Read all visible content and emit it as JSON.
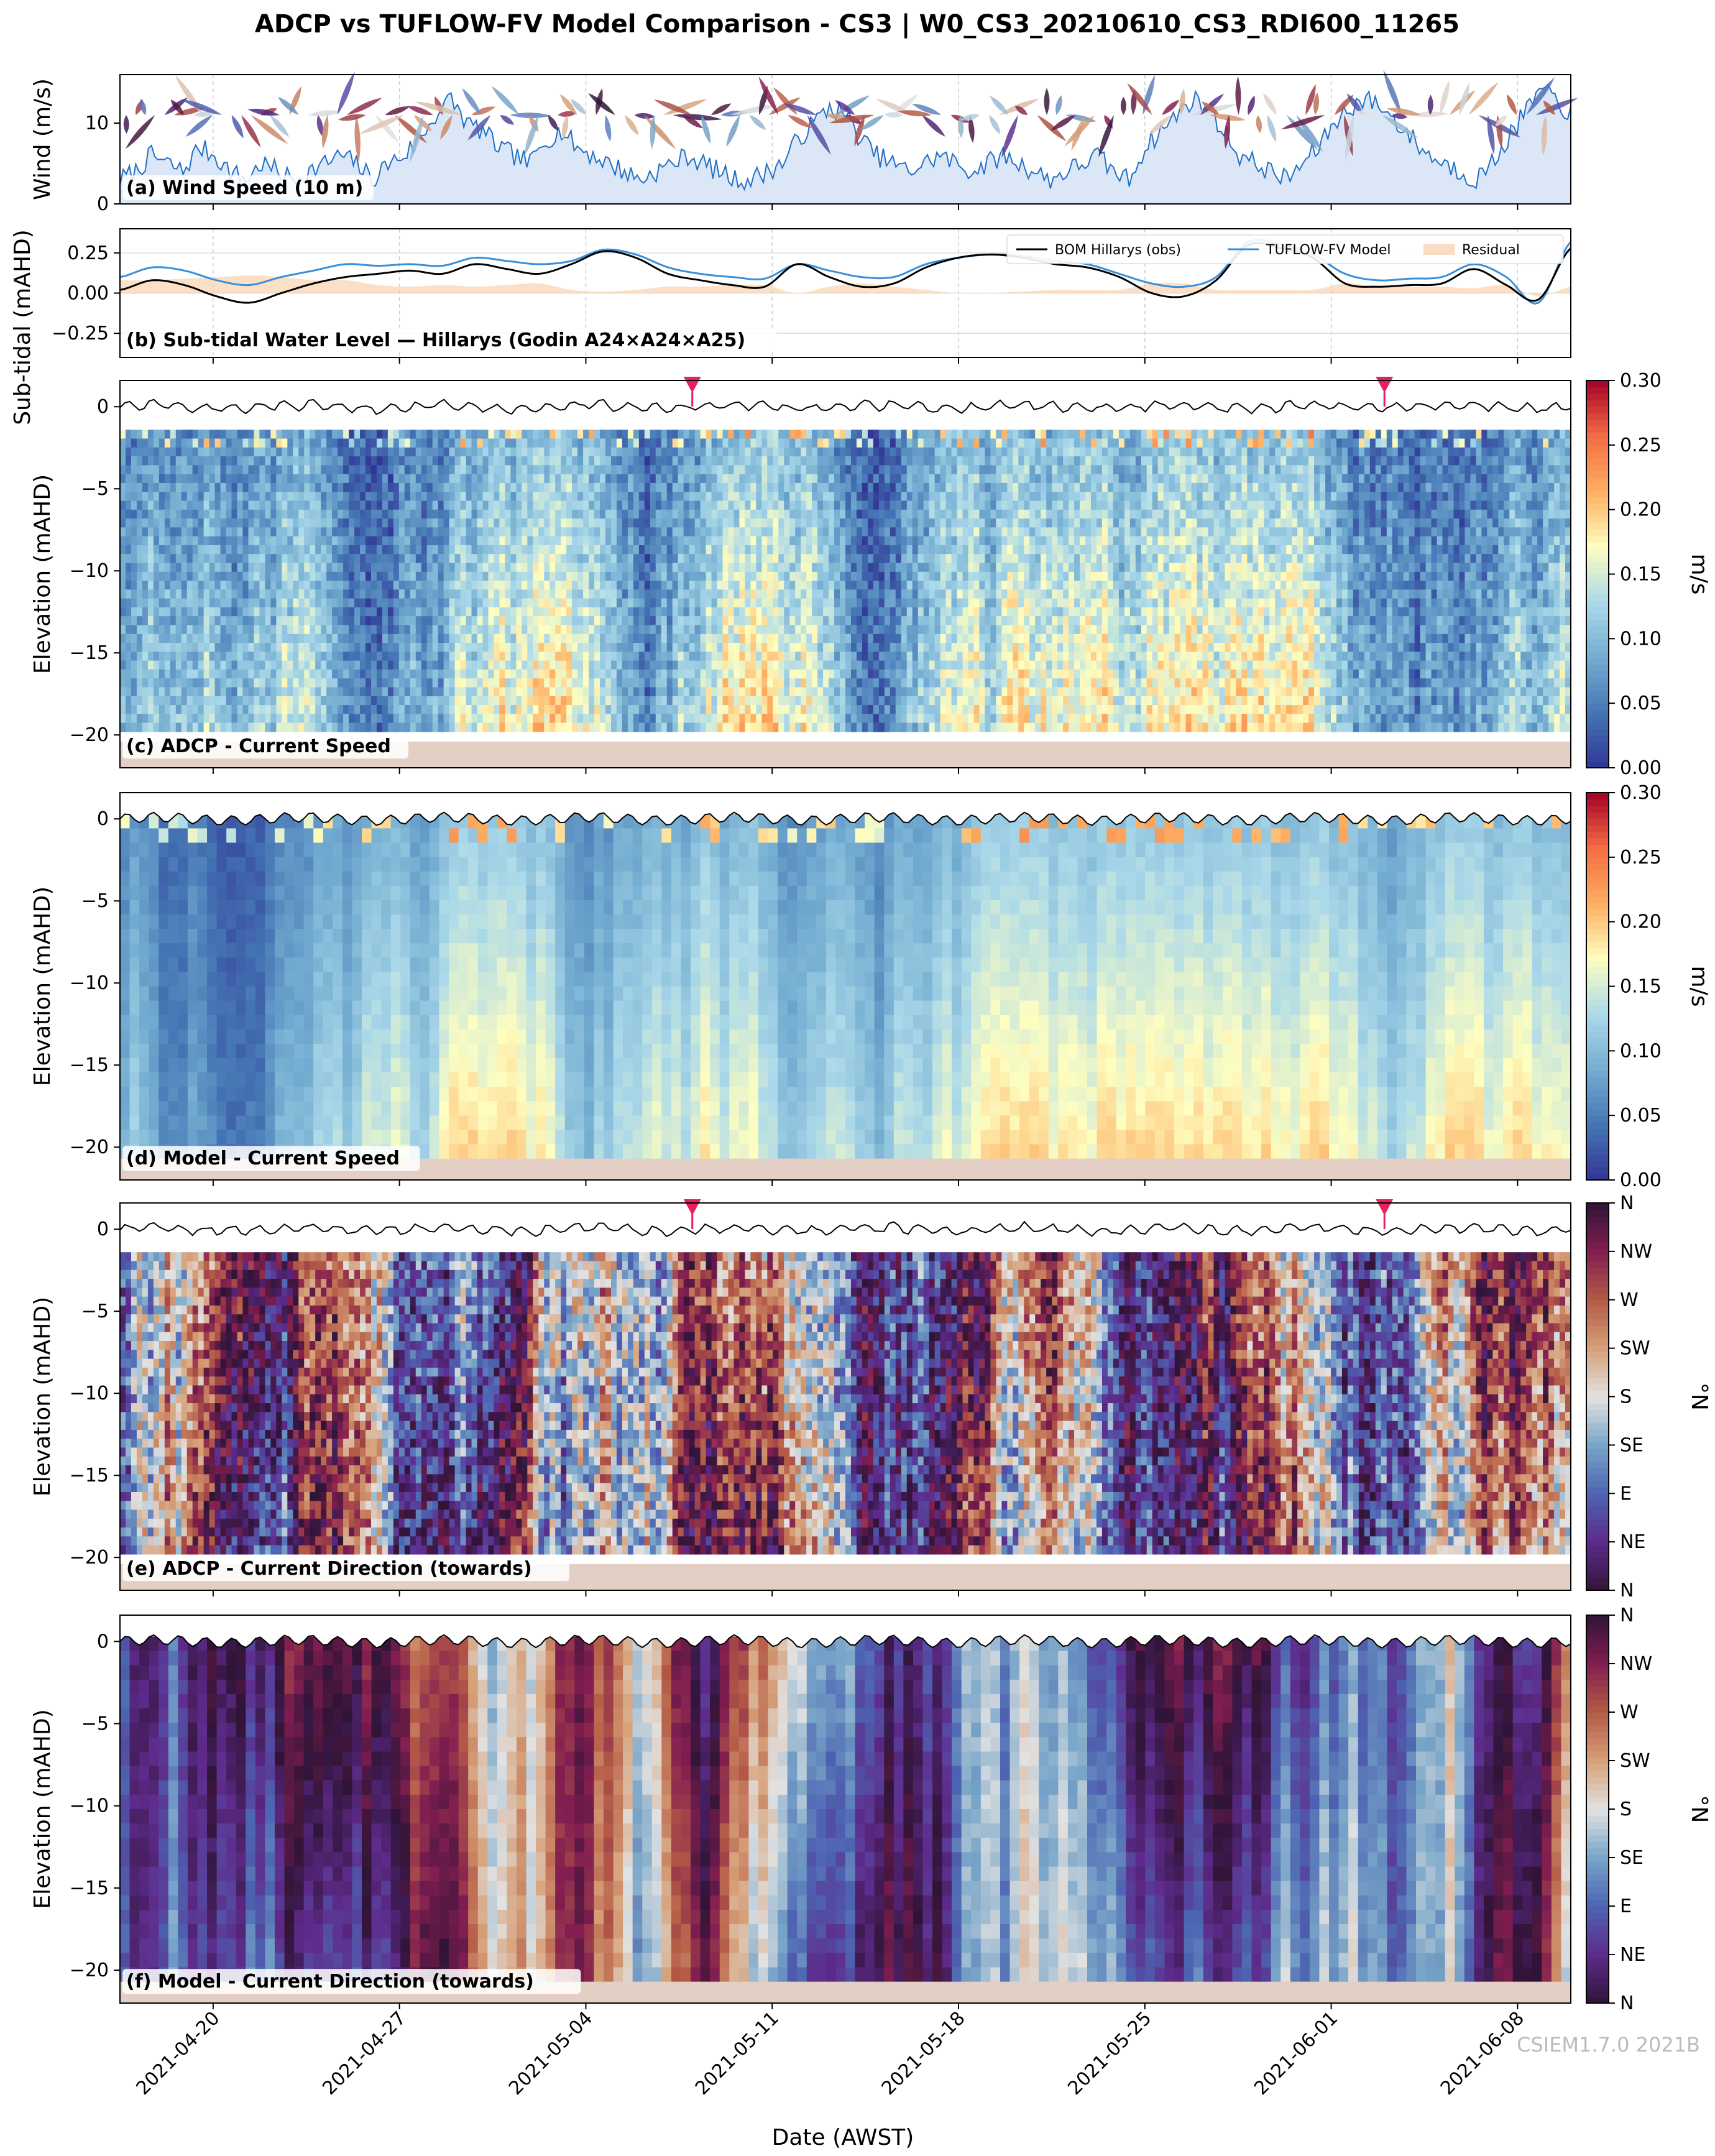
{
  "title": "ADCP vs TUFLOW-FV Model Comparison - CS3 | W0_CS3_20210610_CS3_RDI600_11265",
  "watermark": "CSIEM1.7.0 2021B",
  "xaxis": {
    "label": "Date (AWST)",
    "ticks": [
      "2021-04-20",
      "2021-04-27",
      "2021-05-04",
      "2021-05-11",
      "2021-05-18",
      "2021-05-25",
      "2021-06-01",
      "2021-06-08"
    ],
    "range": [
      "2021-04-16T12:00",
      "2021-06-10T00:00"
    ]
  },
  "chart_data": [
    {
      "type": "area",
      "panel_label": "(a) Wind Speed (10 m)",
      "ylabel": "Wind (m/s)",
      "ylim": [
        0,
        16
      ],
      "yticks": [
        "0",
        "10"
      ],
      "series": [
        {
          "values": [
            3,
            4,
            6,
            5,
            4,
            7,
            6,
            4,
            3,
            5,
            4,
            3,
            4,
            5,
            6,
            5,
            3,
            5,
            6,
            8,
            11,
            13,
            10,
            9,
            7,
            6,
            5,
            8,
            9,
            7,
            6,
            5,
            4,
            3,
            4,
            5,
            6,
            5,
            4,
            3,
            3,
            4,
            5,
            8,
            10,
            12,
            11,
            8,
            6,
            5,
            4,
            5,
            6,
            5,
            4,
            5,
            6,
            5,
            4,
            3,
            4,
            5,
            6,
            4,
            3,
            7,
            9,
            11,
            13,
            12,
            9,
            6,
            5,
            4,
            3,
            5,
            7,
            10,
            12,
            13,
            12,
            10,
            8,
            6,
            5,
            4,
            3,
            5,
            8,
            11,
            14,
            13,
            11
          ]
        }
      ],
      "colors": {
        "fill": "#dbe6f6",
        "line": "#1f6fc5"
      },
      "wind_direction_arrows": true
    },
    {
      "type": "line",
      "panel_label": "(b) Sub-tidal Water Level — Hillarys (Godin A24×A24×A25)",
      "ylabel": "Sub-tidal (mAHD)",
      "ylim": [
        -0.4,
        0.4
      ],
      "yticks": [
        "−0.25",
        "0.00",
        "0.25"
      ],
      "legend": [
        "BOM Hillarys (obs)",
        "TUFLOW-FV Model",
        "Residual"
      ],
      "series": [
        {
          "name": "BOM Hillarys (obs)",
          "color": "#000000",
          "values": [
            0.02,
            0.08,
            0.05,
            -0.02,
            -0.06,
            0.0,
            0.06,
            0.1,
            0.12,
            0.14,
            0.12,
            0.18,
            0.15,
            0.12,
            0.18,
            0.26,
            0.22,
            0.12,
            0.08,
            0.05,
            0.04,
            0.18,
            0.1,
            0.04,
            0.06,
            0.16,
            0.22,
            0.24,
            0.22,
            0.18,
            0.16,
            0.1,
            0.0,
            -0.02,
            0.08,
            0.3,
            0.28,
            0.22,
            0.06,
            0.04,
            0.05,
            0.06,
            0.15,
            0.05,
            -0.04,
            0.28
          ]
        },
        {
          "name": "TUFLOW-FV Model",
          "color": "#3a8fd9",
          "values": [
            0.1,
            0.16,
            0.14,
            0.08,
            0.05,
            0.1,
            0.14,
            0.18,
            0.17,
            0.18,
            0.17,
            0.22,
            0.2,
            0.18,
            0.2,
            0.27,
            0.24,
            0.16,
            0.12,
            0.1,
            0.09,
            0.18,
            0.14,
            0.1,
            0.1,
            0.18,
            0.22,
            0.24,
            0.23,
            0.2,
            0.18,
            0.12,
            0.06,
            0.04,
            0.1,
            0.32,
            0.3,
            0.24,
            0.12,
            0.08,
            0.09,
            0.1,
            0.18,
            0.1,
            -0.06,
            0.32
          ]
        },
        {
          "name": "Residual",
          "color": "#f7c79a",
          "values": [
            0.08,
            0.08,
            0.09,
            0.1,
            0.11,
            0.1,
            0.08,
            0.08,
            0.05,
            0.04,
            0.05,
            0.04,
            0.05,
            0.06,
            0.02,
            0.01,
            0.02,
            0.04,
            0.04,
            0.05,
            0.05,
            0.0,
            0.04,
            0.06,
            0.04,
            0.02,
            0.0,
            0.0,
            0.01,
            0.02,
            0.02,
            0.02,
            0.06,
            0.06,
            0.02,
            0.02,
            0.02,
            0.02,
            0.06,
            0.04,
            0.04,
            0.04,
            0.03,
            0.05,
            -0.02,
            0.04
          ]
        }
      ]
    },
    {
      "type": "heatmap",
      "panel_label": "(c) ADCP - Current Speed",
      "ylabel": "Elevation (mAHD)",
      "ylim": [
        -22,
        1.6
      ],
      "yticks": [
        "0",
        "−5",
        "−10",
        "−15",
        "−20"
      ],
      "colorbar": {
        "label": "m/s",
        "ticks": [
          "0.00",
          "0.05",
          "0.10",
          "0.15",
          "0.20",
          "0.25",
          "0.30"
        ],
        "range": [
          0,
          0.3
        ],
        "colormap": "RdYlBu_r"
      },
      "markers": [
        "2021-05-08",
        "2021-06-03"
      ],
      "data_top": -1.4,
      "data_bottom": -19.8,
      "bed": -20.4
    },
    {
      "type": "heatmap",
      "panel_label": "(d) Model - Current Speed",
      "ylabel": "Elevation (mAHD)",
      "ylim": [
        -22,
        1.6
      ],
      "yticks": [
        "0",
        "−5",
        "−10",
        "−15",
        "−20"
      ],
      "colorbar": {
        "label": "m/s",
        "ticks": [
          "0.00",
          "0.05",
          "0.10",
          "0.15",
          "0.20",
          "0.25",
          "0.30"
        ],
        "range": [
          0,
          0.3
        ],
        "colormap": "RdYlBu_r"
      },
      "data_top": 0.3,
      "data_bottom": -20.7,
      "bed": -20.7
    },
    {
      "type": "heatmap",
      "panel_label": "(e) ADCP - Current Direction (towards)",
      "ylabel": "Elevation (mAHD)",
      "ylim": [
        -22,
        1.6
      ],
      "yticks": [
        "0",
        "−5",
        "−10",
        "−15",
        "−20"
      ],
      "colorbar": {
        "label": "°N",
        "ticks": [
          "N",
          "NE",
          "E",
          "SE",
          "S",
          "SW",
          "W",
          "NW",
          "N"
        ],
        "range": [
          0,
          360
        ],
        "colormap": "twilight_shifted"
      },
      "markers": [
        "2021-05-08",
        "2021-06-03"
      ],
      "data_top": -1.4,
      "data_bottom": -19.8,
      "bed": -20.4
    },
    {
      "type": "heatmap",
      "panel_label": "(f) Model - Current Direction (towards)",
      "ylabel": "Elevation (mAHD)",
      "ylim": [
        -22,
        1.6
      ],
      "yticks": [
        "0",
        "−5",
        "−10",
        "−15",
        "−20"
      ],
      "colorbar": {
        "label": "°N",
        "ticks": [
          "N",
          "NE",
          "E",
          "SE",
          "S",
          "SW",
          "W",
          "NW",
          "N"
        ],
        "range": [
          0,
          360
        ],
        "colormap": "twilight_shifted"
      },
      "data_top": 0.3,
      "data_bottom": -20.7,
      "bed": -20.7
    }
  ]
}
